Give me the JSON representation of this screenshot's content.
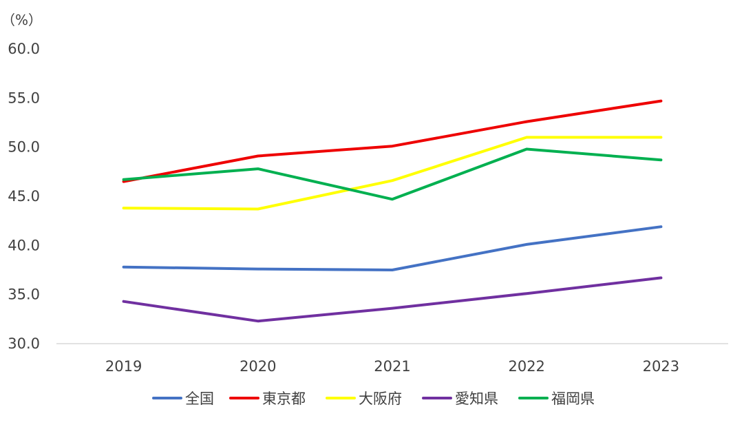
{
  "chart_data": {
    "type": "line",
    "y_unit": "（%）",
    "categories": [
      "2019",
      "2020",
      "2021",
      "2022",
      "2023"
    ],
    "ylim": [
      30.0,
      60.0
    ],
    "yticks": [
      "30.0",
      "35.0",
      "40.0",
      "45.0",
      "50.0",
      "55.0",
      "60.0"
    ],
    "grid": false,
    "legend_position": "bottom",
    "series": [
      {
        "name": "全国",
        "color": "#4472C4",
        "values": [
          37.8,
          37.6,
          37.5,
          40.1,
          41.9
        ]
      },
      {
        "name": "東京都",
        "color": "#EE0000",
        "values": [
          46.5,
          49.1,
          50.1,
          52.6,
          54.7
        ]
      },
      {
        "name": "大阪府",
        "color": "#FFFF00",
        "values": [
          43.8,
          43.7,
          46.6,
          51.0,
          51.0
        ]
      },
      {
        "name": "愛知県",
        "color": "#7030A0",
        "values": [
          34.3,
          32.3,
          33.6,
          35.1,
          36.7
        ]
      },
      {
        "name": "福岡県",
        "color": "#00B050",
        "values": [
          46.7,
          47.8,
          44.7,
          49.8,
          48.7
        ]
      }
    ]
  }
}
